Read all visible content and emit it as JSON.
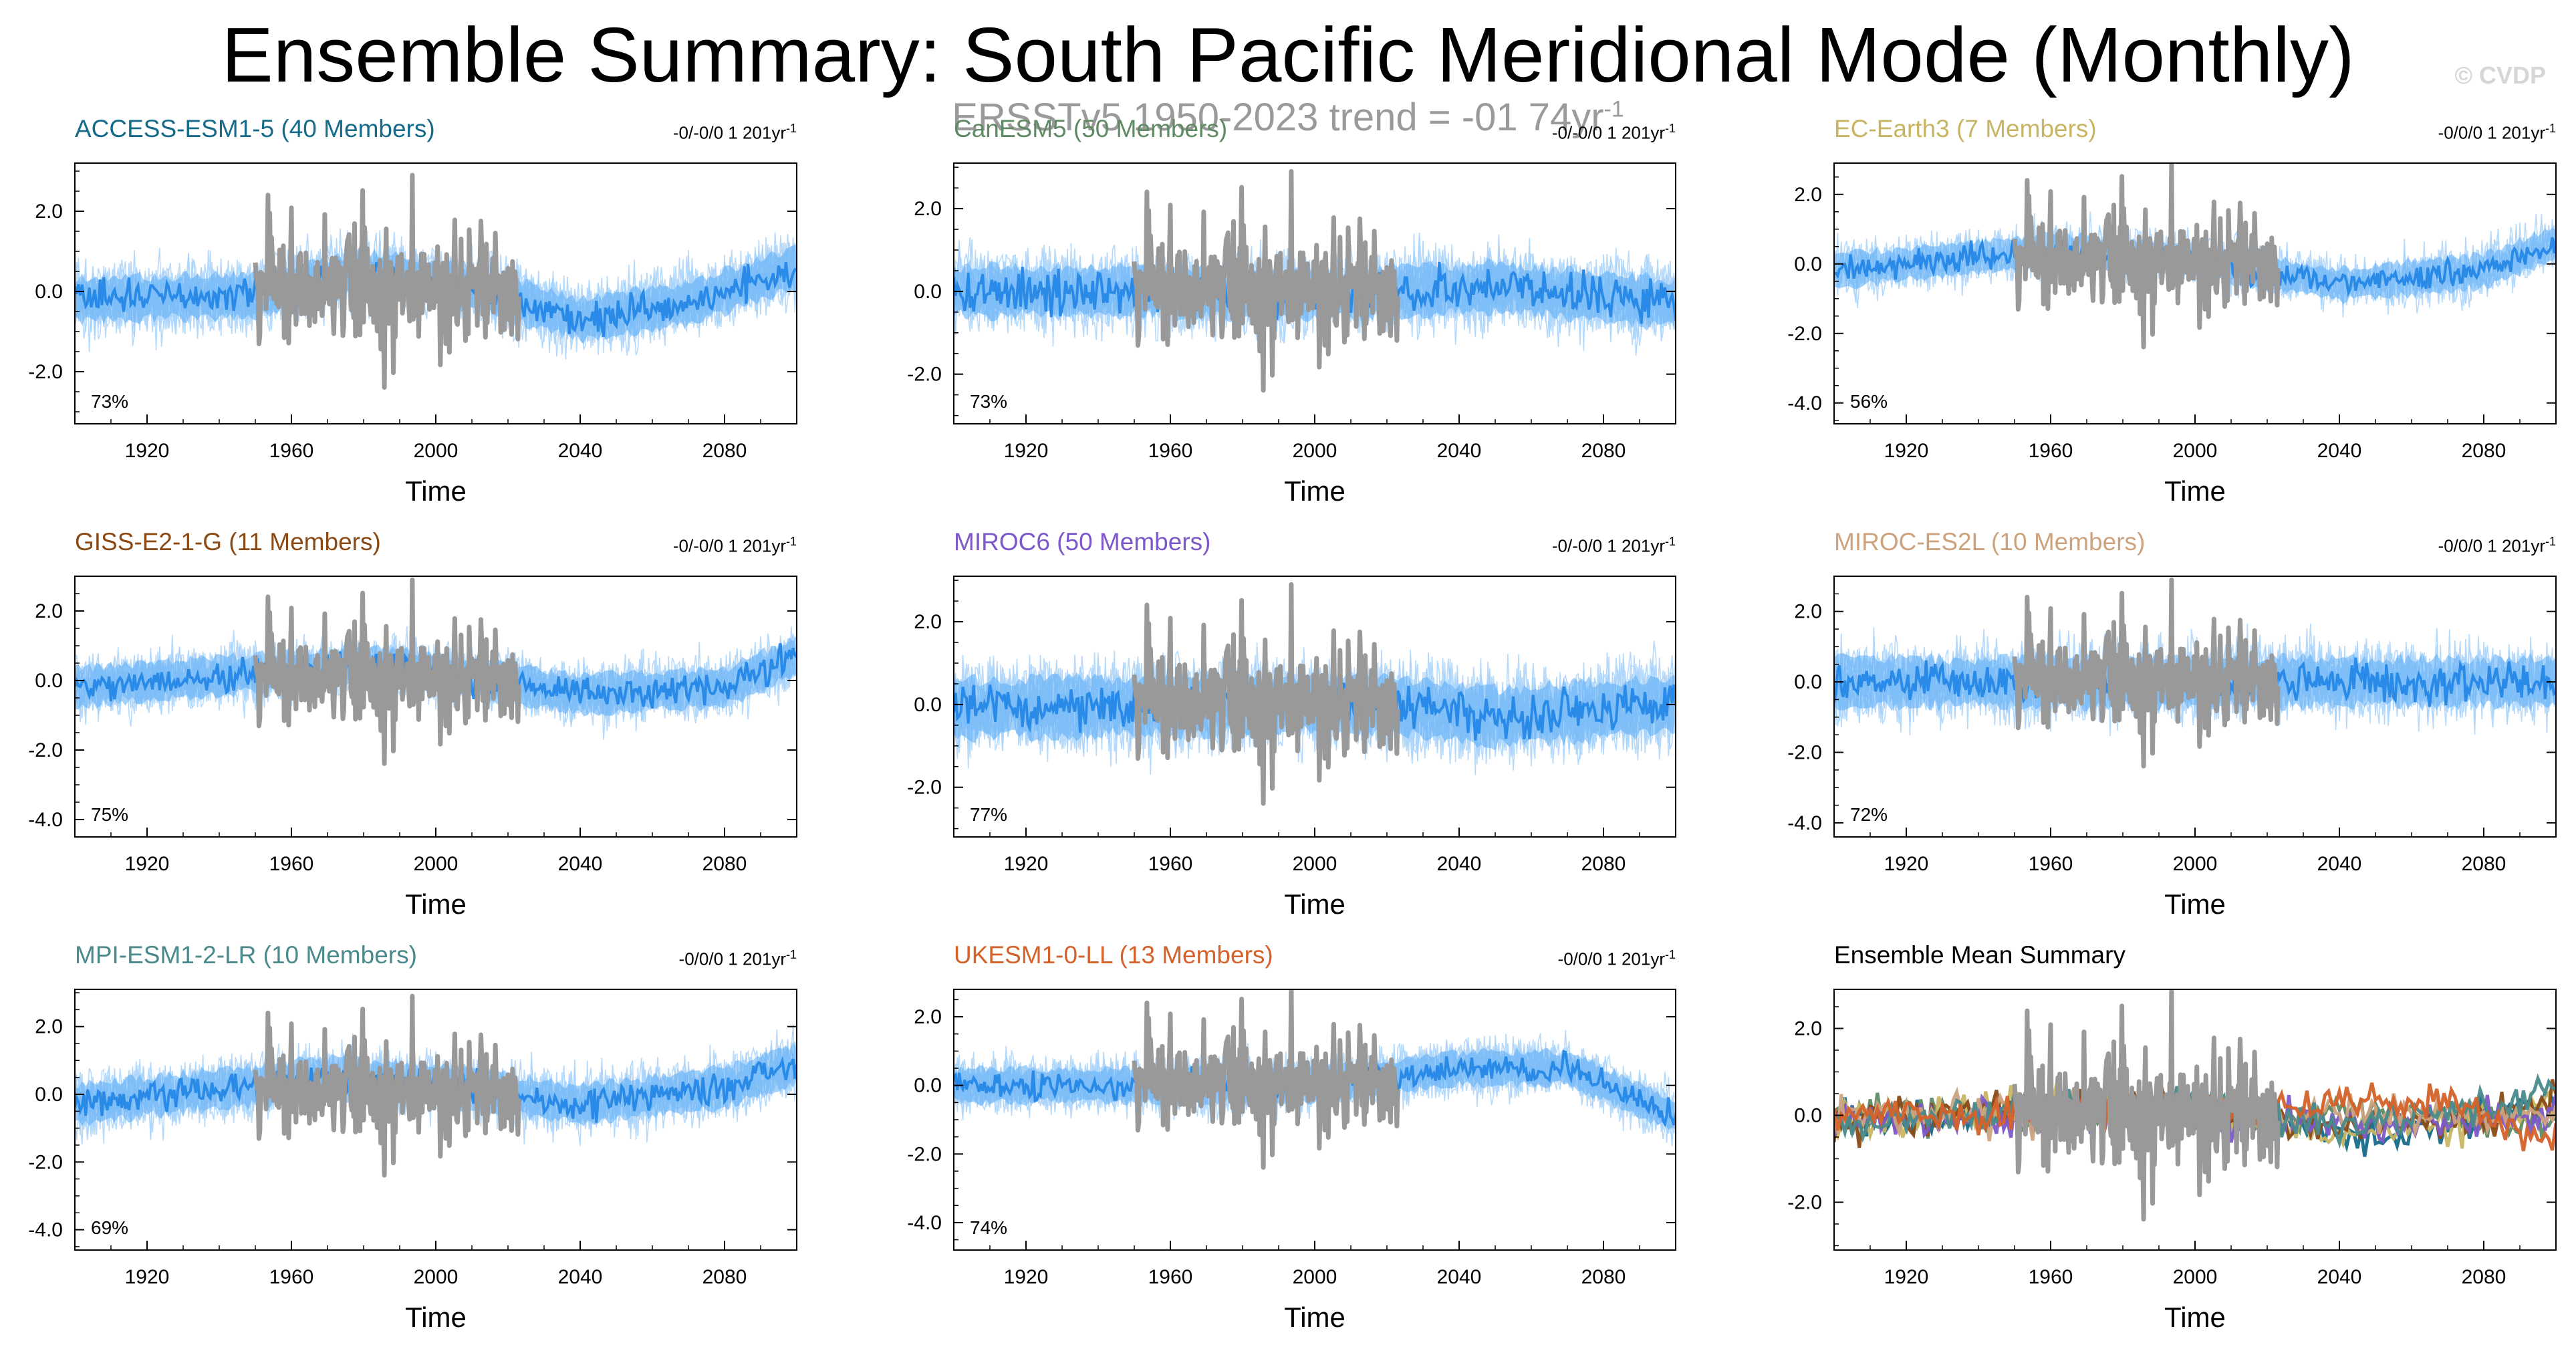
{
  "title": "Ensemble Summary: South Pacific Meridional Mode (Monthly)",
  "copyright": "© CVDP",
  "observation": {
    "label": "ERSSTv5 1950-2023 trend = -01 74yr",
    "unit_sup": "-1",
    "color": "#9a9a9a"
  },
  "colors": {
    "spread_light": "#a9d4fa",
    "spread_mid": "#5aacf5",
    "member": "#2a8ae8",
    "obs": "#999999"
  },
  "chart_data": [
    {
      "type": "line",
      "model": "ACCESS-ESM1-5",
      "title": "ACCESS-ESM1-5 (40 Members)",
      "title_color": "#176b8a",
      "trend": "-0/-0/0 1 201yr",
      "trend_sup": "-1",
      "percent": "73%",
      "xlabel": "Time",
      "ylim": [
        -3.3,
        3.2
      ],
      "yticks": [
        {
          "v": 2,
          "t": "2.0"
        },
        {
          "v": 0,
          "t": "0.0"
        },
        {
          "v": -2,
          "t": "-2.0"
        }
      ],
      "xticks": [
        1920,
        1960,
        2000,
        2040,
        2080
      ],
      "xlim": [
        1900,
        2100
      ],
      "obs_years": [
        1950,
        2023
      ],
      "members": 40,
      "mean_curve": [
        [
          1900,
          -0.2
        ],
        [
          1950,
          -0.1
        ],
        [
          1980,
          0.5
        ],
        [
          2010,
          0.1
        ],
        [
          2040,
          -0.7
        ],
        [
          2070,
          -0.3
        ],
        [
          2100,
          0.6
        ]
      ],
      "noise": 0.55
    },
    {
      "type": "line",
      "model": "CanESM5",
      "title": "CanESM5 (50 Members)",
      "title_color": "#5f8a64",
      "trend": "-0/-0/0 1 201yr",
      "trend_sup": "-1",
      "percent": "73%",
      "xlabel": "Time",
      "ylim": [
        -3.2,
        3.1
      ],
      "yticks": [
        {
          "v": 2,
          "t": "2.0"
        },
        {
          "v": 0,
          "t": "0.0"
        },
        {
          "v": -2,
          "t": "-2.0"
        }
      ],
      "xticks": [
        1920,
        1960,
        2000,
        2040,
        2080
      ],
      "xlim": [
        1900,
        2100
      ],
      "obs_years": [
        1950,
        2023
      ],
      "members": 50,
      "mean_curve": [
        [
          1900,
          0.0
        ],
        [
          1960,
          0.0
        ],
        [
          2000,
          -0.1
        ],
        [
          2050,
          0.1
        ],
        [
          2100,
          -0.3
        ]
      ],
      "noise": 0.6
    },
    {
      "type": "line",
      "model": "EC-Earth3",
      "title": "EC-Earth3 (7 Members)",
      "title_color": "#c8b564",
      "trend": "-0/0/0 1 201yr",
      "trend_sup": "-1",
      "percent": "56%",
      "xlabel": "Time",
      "ylim": [
        -4.6,
        2.9
      ],
      "yticks": [
        {
          "v": 2,
          "t": "2.0"
        },
        {
          "v": 0,
          "t": "0.0"
        },
        {
          "v": -2,
          "t": "-2.0"
        },
        {
          "v": -4,
          "t": "-4.0"
        }
      ],
      "xticks": [
        1920,
        1960,
        2000,
        2040,
        2080
      ],
      "xlim": [
        1900,
        2100
      ],
      "obs_years": [
        1950,
        2023
      ],
      "members": 7,
      "mean_curve": [
        [
          1900,
          -0.2
        ],
        [
          1960,
          0.4
        ],
        [
          2000,
          0.1
        ],
        [
          2040,
          -0.6
        ],
        [
          2080,
          -0.2
        ],
        [
          2100,
          0.6
        ]
      ],
      "noise": 0.5
    },
    {
      "type": "line",
      "model": "GISS-E2-1-G",
      "title": "GISS-E2-1-G (11 Members)",
      "title_color": "#8a4a16",
      "trend": "-0/-0/0 1 201yr",
      "trend_sup": "-1",
      "percent": "75%",
      "xlabel": "Time",
      "ylim": [
        -4.5,
        3.0
      ],
      "yticks": [
        {
          "v": 2,
          "t": "2.0"
        },
        {
          "v": 0,
          "t": "0.0"
        },
        {
          "v": -2,
          "t": "-2.0"
        },
        {
          "v": -4,
          "t": "-4.0"
        }
      ],
      "xticks": [
        1920,
        1960,
        2000,
        2040,
        2080
      ],
      "xlim": [
        1900,
        2100
      ],
      "obs_years": [
        1950,
        2023
      ],
      "members": 11,
      "mean_curve": [
        [
          1900,
          -0.2
        ],
        [
          1960,
          0.3
        ],
        [
          1990,
          0.4
        ],
        [
          2040,
          -0.4
        ],
        [
          2080,
          -0.2
        ],
        [
          2100,
          0.7
        ]
      ],
      "noise": 0.55
    },
    {
      "type": "line",
      "model": "MIROC6",
      "title": "MIROC6 (50 Members)",
      "title_color": "#7d58c8",
      "trend": "-0/-0/0 1 201yr",
      "trend_sup": "-1",
      "percent": "77%",
      "xlabel": "Time",
      "ylim": [
        -3.2,
        3.1
      ],
      "yticks": [
        {
          "v": 2,
          "t": "2.0"
        },
        {
          "v": 0,
          "t": "0.0"
        },
        {
          "v": -2,
          "t": "-2.0"
        }
      ],
      "xticks": [
        1920,
        1960,
        2000,
        2040,
        2080
      ],
      "xlim": [
        1900,
        2100
      ],
      "obs_years": [
        1950,
        2023
      ],
      "members": 50,
      "mean_curve": [
        [
          1900,
          -0.1
        ],
        [
          1980,
          0.0
        ],
        [
          2020,
          0.0
        ],
        [
          2050,
          -0.3
        ],
        [
          2100,
          0.0
        ]
      ],
      "noise": 0.7
    },
    {
      "type": "line",
      "model": "MIROC-ES2L",
      "title": "MIROC-ES2L (10 Members)",
      "title_color": "#cca37e",
      "trend": "-0/0/0 1 201yr",
      "trend_sup": "-1",
      "percent": "72%",
      "xlabel": "Time",
      "ylim": [
        -4.4,
        3.0
      ],
      "yticks": [
        {
          "v": 2,
          "t": "2.0"
        },
        {
          "v": 0,
          "t": "0.0"
        },
        {
          "v": -2,
          "t": "-2.0"
        },
        {
          "v": -4,
          "t": "-4.0"
        }
      ],
      "xticks": [
        1920,
        1960,
        2000,
        2040,
        2080
      ],
      "xlim": [
        1900,
        2100
      ],
      "obs_years": [
        1950,
        2023
      ],
      "members": 10,
      "mean_curve": [
        [
          1900,
          0.0
        ],
        [
          1960,
          0.0
        ],
        [
          2000,
          0.0
        ],
        [
          2100,
          0.0
        ]
      ],
      "noise": 0.7
    },
    {
      "type": "line",
      "model": "MPI-ESM1-2-LR",
      "title": "MPI-ESM1-2-LR (10 Members)",
      "title_color": "#4a8a8c",
      "trend": "-0/0/0 1 201yr",
      "trend_sup": "-1",
      "percent": "69%",
      "xlabel": "Time",
      "ylim": [
        -4.6,
        3.1
      ],
      "yticks": [
        {
          "v": 2,
          "t": "2.0"
        },
        {
          "v": 0,
          "t": "0.0"
        },
        {
          "v": -2,
          "t": "-2.0"
        },
        {
          "v": -4,
          "t": "-4.0"
        }
      ],
      "xticks": [
        1920,
        1960,
        2000,
        2040,
        2080
      ],
      "xlim": [
        1900,
        2100
      ],
      "obs_years": [
        1950,
        2023
      ],
      "members": 10,
      "mean_curve": [
        [
          1900,
          -0.3
        ],
        [
          1970,
          0.5
        ],
        [
          2000,
          0.3
        ],
        [
          2040,
          -0.3
        ],
        [
          2080,
          0.2
        ],
        [
          2100,
          0.9
        ]
      ],
      "noise": 0.6
    },
    {
      "type": "line",
      "model": "UKESM1-0-LL",
      "title": "UKESM1-0-LL (13 Members)",
      "title_color": "#d4622a",
      "trend": "-0/0/0 1 201yr",
      "trend_sup": "-1",
      "percent": "74%",
      "xlabel": "Time",
      "ylim": [
        -4.8,
        2.8
      ],
      "yticks": [
        {
          "v": 2,
          "t": "2.0"
        },
        {
          "v": 0,
          "t": "0.0"
        },
        {
          "v": -2,
          "t": "-2.0"
        },
        {
          "v": -4,
          "t": "-4.0"
        }
      ],
      "xticks": [
        1920,
        1960,
        2000,
        2040,
        2080
      ],
      "xlim": [
        1900,
        2100
      ],
      "obs_years": [
        1950,
        2023
      ],
      "members": 13,
      "mean_curve": [
        [
          1900,
          0.0
        ],
        [
          2000,
          0.0
        ],
        [
          2040,
          0.5
        ],
        [
          2070,
          0.5
        ],
        [
          2100,
          -0.9
        ]
      ],
      "noise": 0.5
    },
    {
      "type": "line",
      "model": "Ensemble Mean Summary",
      "title": "Ensemble Mean Summary",
      "title_color": "#000000",
      "trend": "",
      "trend_sup": "",
      "percent": "",
      "xlabel": "Time",
      "ylim": [
        -3.1,
        2.9
      ],
      "yticks": [
        {
          "v": 2,
          "t": "2.0"
        },
        {
          "v": 0,
          "t": "0.0"
        },
        {
          "v": -2,
          "t": "-2.0"
        }
      ],
      "xticks": [
        1920,
        1960,
        2000,
        2040,
        2080
      ],
      "xlim": [
        1900,
        2100
      ],
      "obs_years": [
        1950,
        2023
      ],
      "summary": true,
      "series": [
        {
          "name": "ACCESS-ESM1-5",
          "color": "#176b8a"
        },
        {
          "name": "CanESM5",
          "color": "#5f8a64"
        },
        {
          "name": "EC-Earth3",
          "color": "#c8b564"
        },
        {
          "name": "GISS-E2-1-G",
          "color": "#8a4a16"
        },
        {
          "name": "MIROC6",
          "color": "#7d58c8"
        },
        {
          "name": "MIROC-ES2L",
          "color": "#cca37e"
        },
        {
          "name": "MPI-ESM1-2-LR",
          "color": "#4a8a8c"
        },
        {
          "name": "UKESM1-0-LL",
          "color": "#d4622a"
        }
      ]
    }
  ]
}
